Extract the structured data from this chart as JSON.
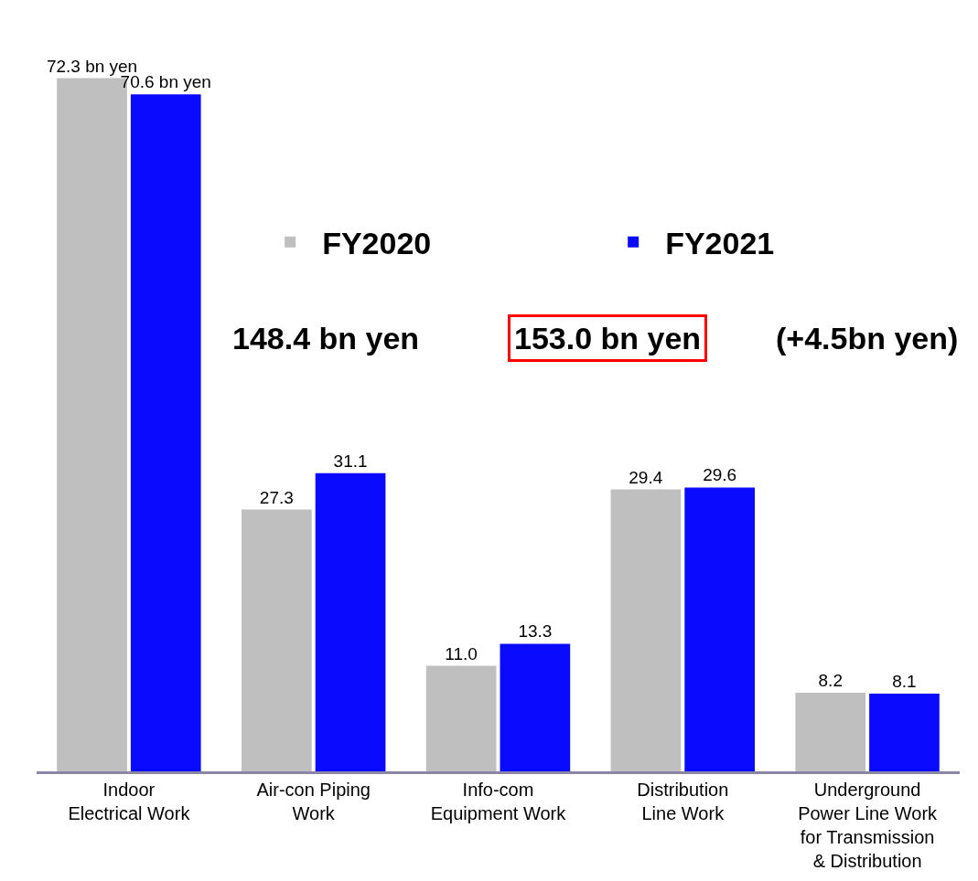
{
  "chart_data": {
    "type": "bar",
    "categories": [
      "Indoor Electrical Work",
      "Air-con Piping Work",
      "Info-com Equipment Work",
      "Distribution Line Work",
      "Underground Power Line Work for Transmission & Distribution"
    ],
    "series": [
      {
        "name": "FY2020",
        "color": "#bfbfbf",
        "values": [
          72.3,
          27.3,
          11.0,
          29.4,
          8.2
        ],
        "value_labels": [
          "72.3 bn yen",
          "27.3",
          "11.0",
          "29.4",
          "8.2"
        ]
      },
      {
        "name": "FY2021",
        "color": "#0a0aff",
        "values": [
          70.6,
          31.1,
          13.3,
          29.6,
          8.1
        ],
        "value_labels": [
          "70.6 bn yen",
          "31.1",
          "13.3",
          "29.6",
          "8.1"
        ]
      }
    ],
    "annotations": [
      "148.4 bn yen",
      "153.0 bn yen",
      "(+4.5bn yen)"
    ],
    "legend": "top",
    "grid": false
  }
}
